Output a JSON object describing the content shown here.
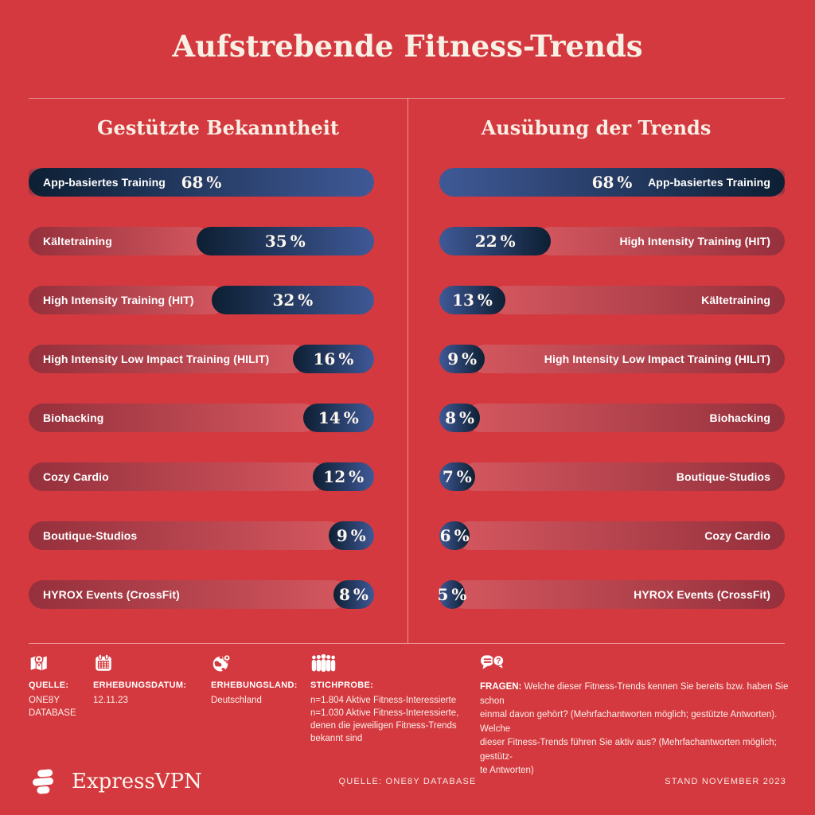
{
  "title": "Aufstrebende Fitness-Trends",
  "colors": {
    "background": "#D4393F",
    "navy_dark": "#0D1F33",
    "navy_light": "#3F5997",
    "track_dark": "#95303C",
    "track_light": "#D4575F",
    "cream": "#F8EFE5"
  },
  "chart_data": [
    {
      "type": "bar",
      "title": "Gestützte Bekanntheit",
      "orientation": "horizontal",
      "unit": "%",
      "scale_max": 68,
      "bar_alignment": "right",
      "categories": [
        "App-basiertes Training",
        "Kältetraining",
        "High Intensity Training (HIT)",
        "High Intensity Low Impact Training (HILIT)",
        "Biohacking",
        "Cozy Cardio",
        "Boutique-Studios",
        "HYROX Events (CrossFit)"
      ],
      "values": [
        68,
        35,
        32,
        16,
        14,
        12,
        9,
        8
      ]
    },
    {
      "type": "bar",
      "title": "Ausübung der Trends",
      "orientation": "horizontal",
      "unit": "%",
      "scale_max": 68,
      "bar_alignment": "left",
      "categories": [
        "App-basiertes Training",
        "High Intensity Training (HIT)",
        "Kältetraining",
        "High Intensity Low Impact Training (HILIT)",
        "Biohacking",
        "Boutique-Studios",
        "Cozy Cardio",
        "HYROX Events (CrossFit)"
      ],
      "values": [
        68,
        22,
        13,
        9,
        8,
        7,
        6,
        5
      ]
    }
  ],
  "footer": {
    "items": [
      {
        "icon": "map-icon",
        "label": "QUELLE:",
        "value": "ONE8Y\nDATABASE"
      },
      {
        "icon": "calendar-icon",
        "label": "ERHEBUNGSDATUM:",
        "value": "12.11.23"
      },
      {
        "icon": "globe-icon",
        "label": "ERHEBUNGSLAND:",
        "value": "Deutschland"
      },
      {
        "icon": "people-icon",
        "label": "STICHPROBE:",
        "value": "n=1.804 Aktive Fitness-Interessierte\nn=1.030 Aktive Fitness-Interessierte,\ndenen die jeweiligen Fitness-Trends\nbekannt sind"
      },
      {
        "icon": "chat-icon",
        "label": "FRAGEN:",
        "value": "Welche dieser Fitness-Trends kennen Sie bereits bzw. haben Sie schon\neinmal davon gehört? (Mehrfachantworten möglich; gestützte Antworten). Welche\ndieser Fitness-Trends führen Sie aktiv aus? (Mehrfachantworten möglich; gestütz-\nte Antworten)"
      }
    ]
  },
  "bottom_bar": {
    "brand": "ExpressVPN",
    "source": "QUELLE: ONE8Y DATABASE",
    "stand": "STAND NOVEMBER 2023"
  }
}
